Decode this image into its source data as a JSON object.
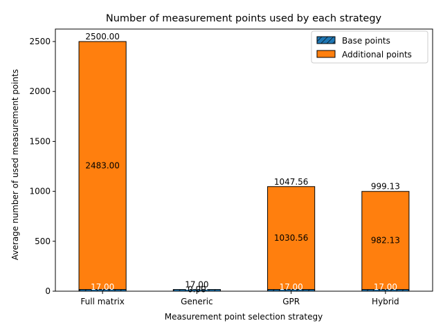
{
  "chart_data": {
    "type": "bar",
    "stacked": true,
    "title": "Number of measurement points used by each strategy",
    "xlabel": "Measurement point selection strategy",
    "ylabel": "Average number of used measurement points",
    "categories": [
      "Full matrix",
      "Generic",
      "GPR",
      "Hybrid"
    ],
    "ylim": [
      0,
      2625
    ],
    "yticks": [
      "0",
      "500",
      "1000",
      "1500",
      "2000",
      "2500"
    ],
    "grid": false,
    "legend_position": "top-right",
    "series": [
      {
        "name": "Base points",
        "values": [
          17,
          17,
          17,
          17
        ],
        "labels": [
          "17.00",
          "17.00",
          "17.00",
          "17.00"
        ],
        "color": "#1f77b4",
        "hatch": true
      },
      {
        "name": "Additional points",
        "values": [
          2483,
          0,
          1030.56,
          982.13
        ],
        "labels": [
          "2483.00",
          "0.00",
          "1030.56",
          "982.13"
        ],
        "color": "#ff7f0e",
        "hatch": false
      }
    ],
    "totals": [
      "2500.00",
      "17.00",
      "1047.56",
      "999.13"
    ]
  }
}
